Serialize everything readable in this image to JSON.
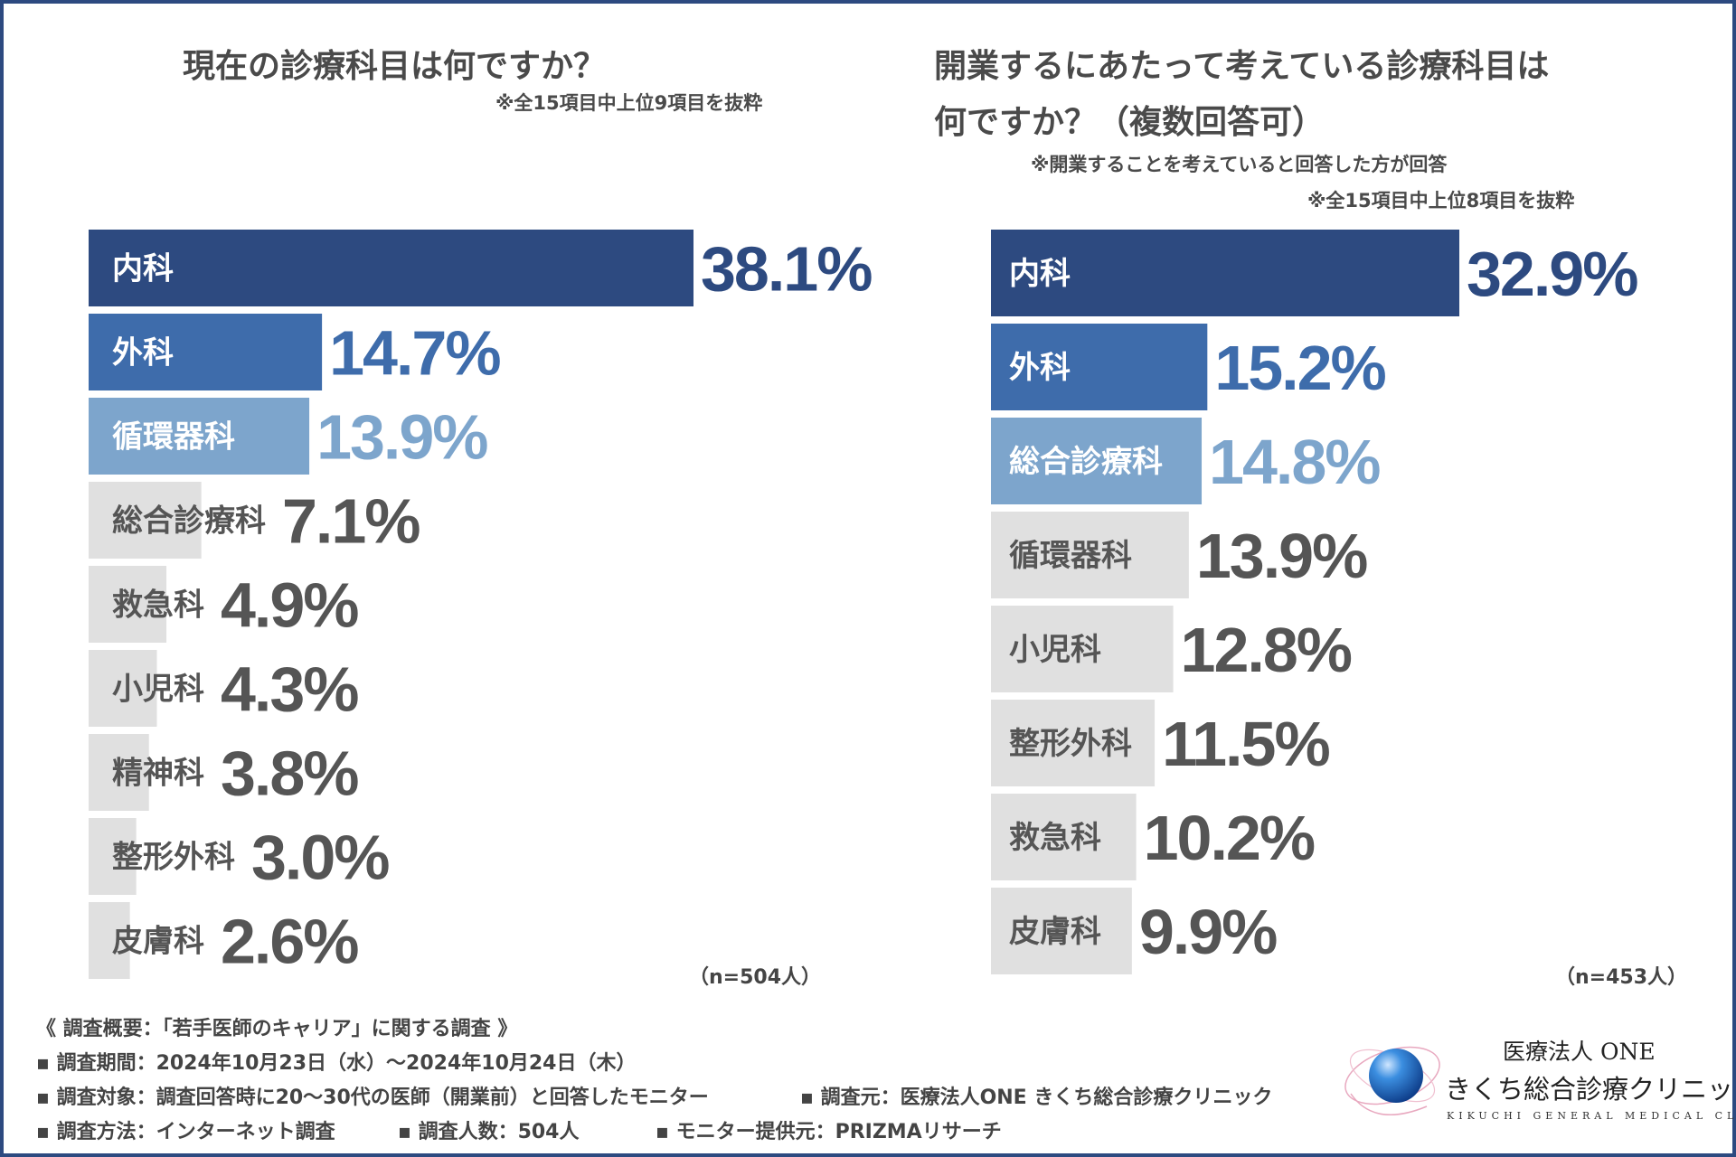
{
  "chart_data": [
    {
      "type": "bar",
      "orientation": "horizontal",
      "title": "現在の診療科目は何ですか？",
      "note": "※全15項目中上位9項目を抜粋",
      "sample_size": "（n=504人）",
      "categories": [
        "内科",
        "外科",
        "循環器科",
        "総合診療科",
        "救急科",
        "小児科",
        "精神科",
        "整形外科",
        "皮膚科"
      ],
      "values": [
        38.1,
        14.7,
        13.9,
        7.1,
        4.9,
        4.3,
        3.8,
        3.0,
        2.6
      ],
      "value_labels": [
        "38.1%",
        "14.7%",
        "13.9%",
        "7.1%",
        "4.9%",
        "4.3%",
        "3.8%",
        "3.0%",
        "2.6%"
      ],
      "xlim": [
        0,
        38.1
      ]
    },
    {
      "type": "bar",
      "orientation": "horizontal",
      "title_line1": "開業するにあたって考えている診療科目は",
      "title_line2": "何ですか？（複数回答可）",
      "note1": "※開業することを考えていると回答した方が回答",
      "note2": "※全15項目中上位8項目を抜粋",
      "sample_size": "（n=453人）",
      "categories": [
        "内科",
        "外科",
        "総合診療科",
        "循環器科",
        "小児科",
        "整形外科",
        "救急科",
        "皮膚科"
      ],
      "values": [
        32.9,
        15.2,
        14.8,
        13.9,
        12.8,
        11.5,
        10.2,
        9.9
      ],
      "value_labels": [
        "32.9%",
        "15.2%",
        "14.8%",
        "13.9%",
        "12.8%",
        "11.5%",
        "10.2%",
        "9.9%"
      ],
      "xlim": [
        0,
        32.9
      ]
    }
  ],
  "colors": {
    "rank1": "#2d4a80",
    "rank2": "#3e6cab",
    "rank3": "#7da5cc",
    "other_bar": "#e0e0e0",
    "other_text": "#555555",
    "border": "#2d4a80"
  },
  "footer": {
    "overview": "《 調査概要：「若手医師のキャリア」に関する調査 》",
    "period": "▪ 調査期間：2024年10月23日（水）～2024年10月24日（木）",
    "target": "▪ 調査対象：調査回答時に20～30代の医師（開業前）と回答したモニター",
    "source": "▪ 調査元：医療法人ONE きくち総合診療クリニック",
    "method": "▪ 調査方法：インターネット調査",
    "count": "▪ 調査人数：504人",
    "provider": "▪ モニター提供元：PRIZMAリサーチ"
  },
  "logo": {
    "line1": "医療法人 ONE",
    "line2": "きくち総合診療クリニック",
    "line3": "KIKUCHI GENERAL MEDICAL CLINIC"
  }
}
